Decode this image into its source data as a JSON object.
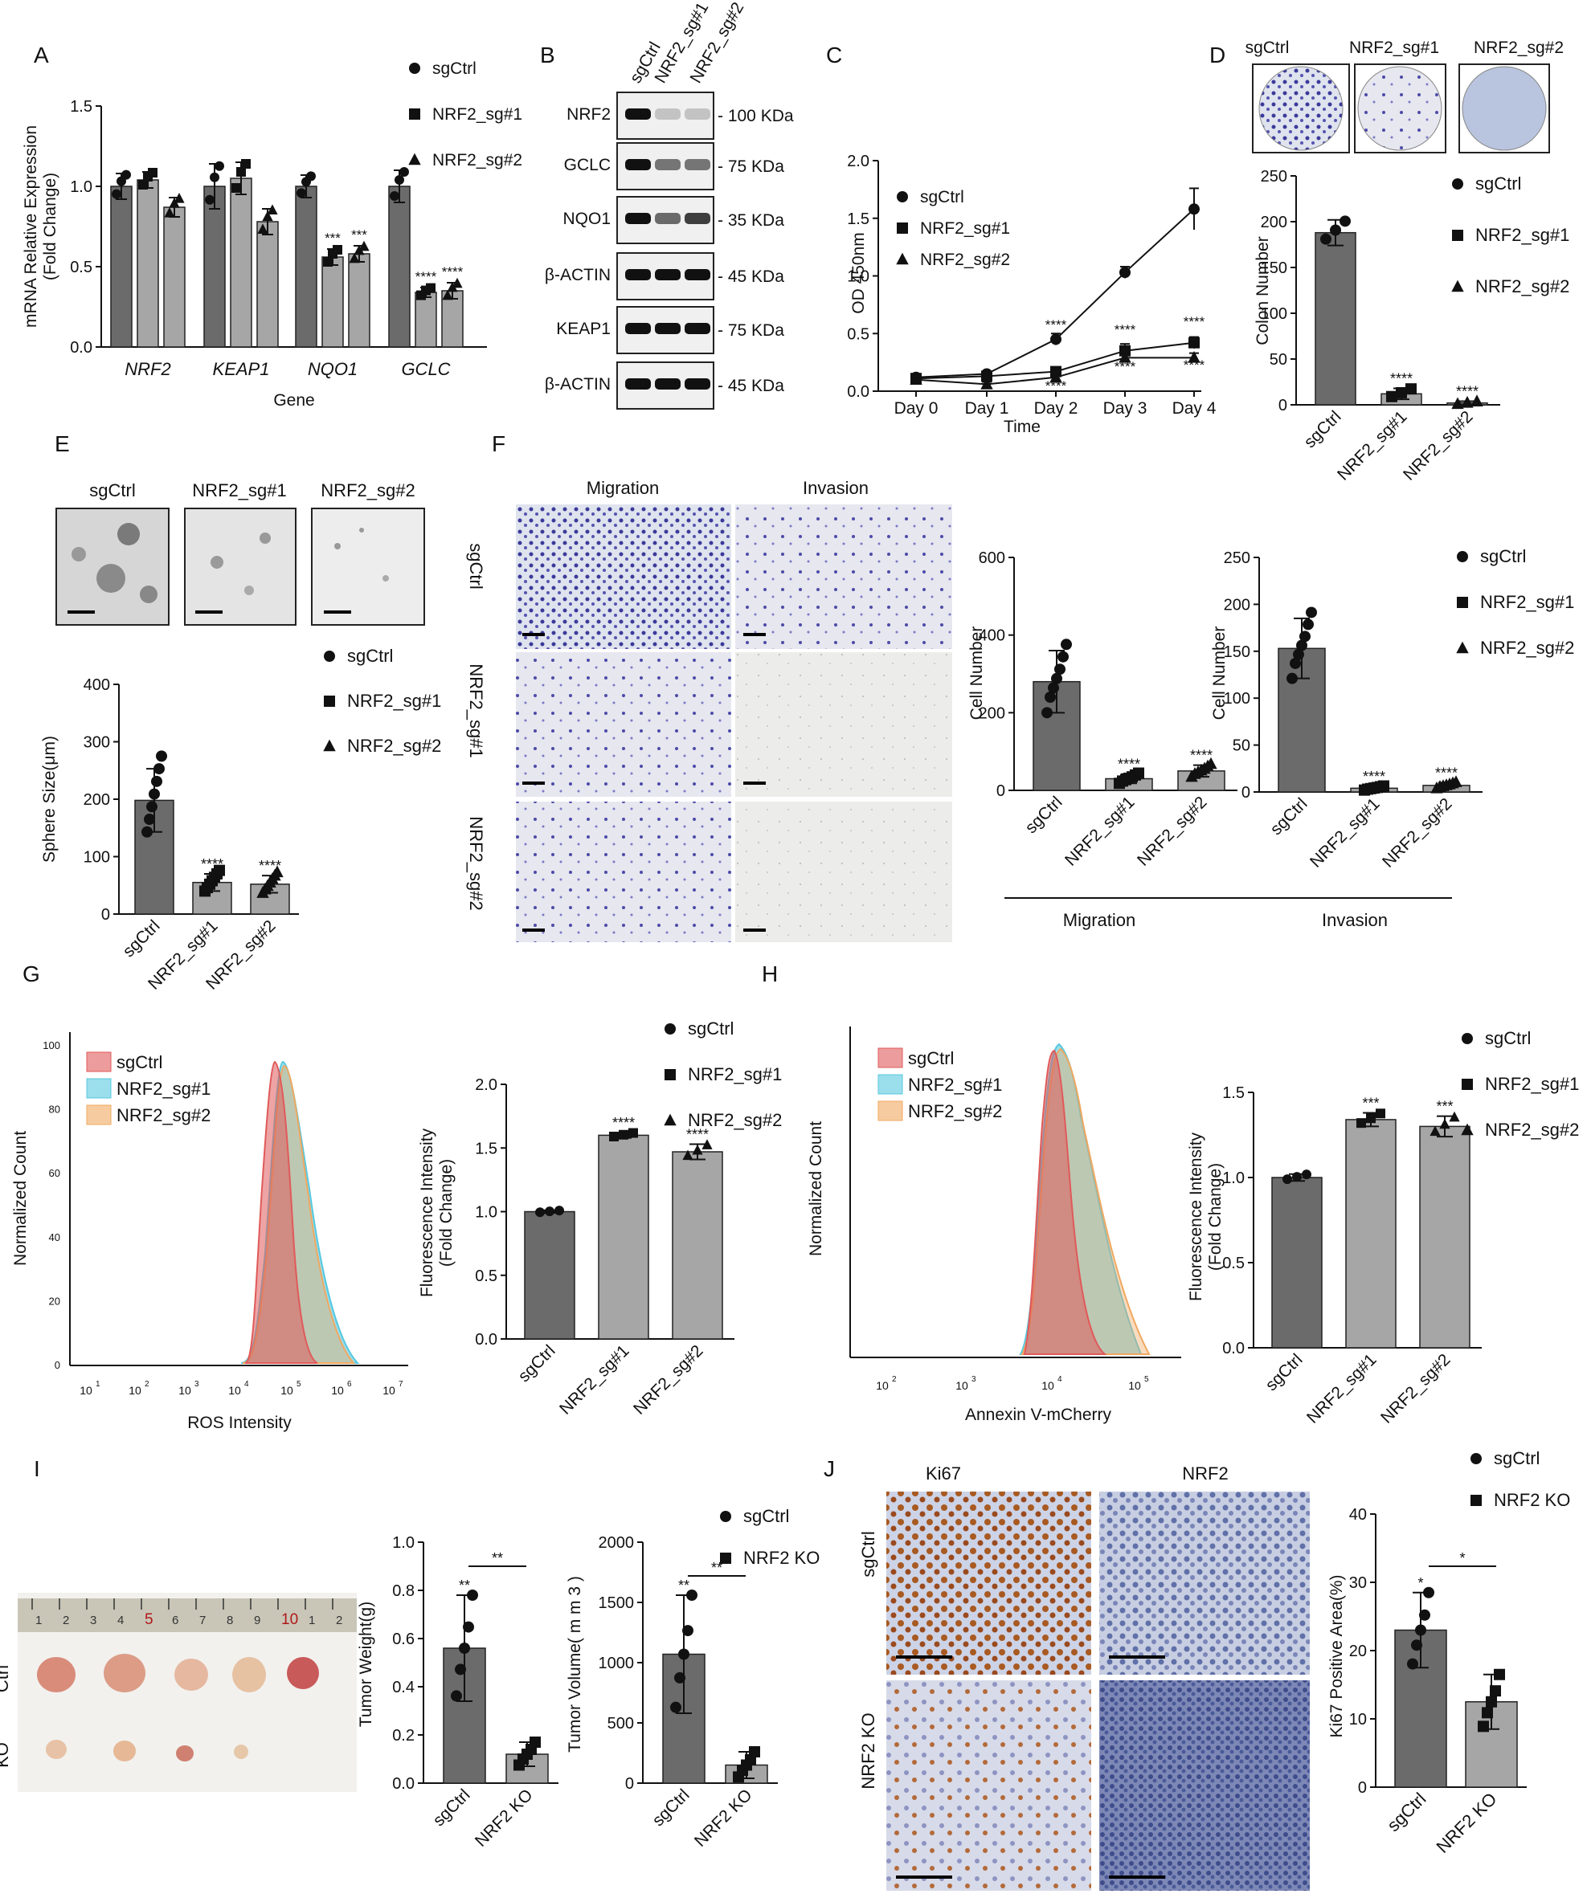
{
  "panel_letters": {
    "a": "A",
    "b": "B",
    "c": "C",
    "d": "D",
    "e": "E",
    "f": "F",
    "g": "G",
    "h": "H",
    "i": "I",
    "j": "J"
  },
  "groups": {
    "ctrl": "sgCtrl",
    "sg1": "NRF2_sg#1",
    "sg2": "NRF2_sg#2",
    "ko": "NRF2 KO"
  },
  "colors": {
    "ctrl_bar": "#6b6b6b",
    "treat_bar": "#a6a6a6",
    "hist_red": "#e05a5a",
    "hist_blue": "#58c8df",
    "hist_orange": "#f0a860",
    "stain_purple": "#3b3a9a",
    "ihc_brown": "#9a4a1e",
    "ihc_blue": "#4a5a9a"
  },
  "chart_data": [
    {
      "id": "A",
      "type": "bar",
      "title": "",
      "xlabel": "Gene",
      "ylabel": "mRNA Relative Expression (Fold Change)",
      "ylim": [
        0,
        1.5
      ],
      "yticks": [
        "0.0",
        "0.5",
        "1.0",
        "1.5"
      ],
      "categories": [
        "NRF2",
        "KEAP1",
        "NQO1",
        "GCLC"
      ],
      "series": [
        {
          "name": "sgCtrl",
          "values": [
            1.0,
            1.0,
            1.0,
            1.0
          ]
        },
        {
          "name": "NRF2_sg#1",
          "values": [
            1.04,
            1.05,
            0.56,
            0.34
          ]
        },
        {
          "name": "NRF2_sg#2",
          "values": [
            0.87,
            0.78,
            0.58,
            0.35
          ]
        }
      ],
      "errors": [
        [
          0.08,
          0.05,
          0.06
        ],
        [
          0.14,
          0.1,
          0.08
        ],
        [
          0.07,
          0.05,
          0.05
        ],
        [
          0.1,
          0.03,
          0.05
        ]
      ],
      "annotations": [
        {
          "cat": "NQO1",
          "series": 1,
          "text": "***"
        },
        {
          "cat": "NQO1",
          "series": 2,
          "text": "***"
        },
        {
          "cat": "GCLC",
          "series": 1,
          "text": "****"
        },
        {
          "cat": "GCLC",
          "series": 2,
          "text": "****"
        }
      ],
      "legend": [
        "sgCtrl",
        "NRF2_sg#1",
        "NRF2_sg#2"
      ]
    },
    {
      "id": "C",
      "type": "line",
      "xlabel": "Time",
      "ylabel": "OD 450nm",
      "ylim": [
        0,
        2.0
      ],
      "yticks": [
        "0.0",
        "0.5",
        "1.0",
        "1.5",
        "2.0"
      ],
      "x": [
        "Day 0",
        "Day 1",
        "Day 2",
        "Day 3",
        "Day 4"
      ],
      "series": [
        {
          "name": "sgCtrl",
          "values": [
            0.12,
            0.15,
            0.45,
            1.03,
            1.58
          ],
          "err": [
            0.02,
            0.02,
            0.05,
            0.05,
            0.18
          ]
        },
        {
          "name": "NRF2_sg#1",
          "values": [
            0.11,
            0.13,
            0.17,
            0.35,
            0.42
          ],
          "err": [
            0.02,
            0.02,
            0.03,
            0.06,
            0.05
          ]
        },
        {
          "name": "NRF2_sg#2",
          "values": [
            0.1,
            0.06,
            0.12,
            0.29,
            0.29
          ],
          "err": [
            0.02,
            0.02,
            0.02,
            0.04,
            0.04
          ]
        }
      ],
      "annotations": [
        "****",
        "****",
        "****",
        "****",
        "****",
        "****"
      ],
      "legend": [
        "sgCtrl",
        "NRF2_sg#1",
        "NRF2_sg#2"
      ]
    },
    {
      "id": "D",
      "type": "bar",
      "ylabel": "Colon Number",
      "ylim": [
        0,
        250
      ],
      "yticks": [
        "0",
        "50",
        "100",
        "150",
        "200",
        "250"
      ],
      "categories": [
        "sgCtrl",
        "NRF2_sg#1",
        "NRF2_sg#2"
      ],
      "values": [
        188,
        12,
        2
      ],
      "err": [
        14,
        6,
        2
      ],
      "annotations": [
        "",
        "****",
        "****"
      ],
      "legend": [
        "sgCtrl",
        "NRF2_sg#1",
        "NRF2_sg#2"
      ]
    },
    {
      "id": "E",
      "type": "bar",
      "ylabel": "Sphere Size(μm)",
      "ylim": [
        0,
        400
      ],
      "yticks": [
        "0",
        "100",
        "200",
        "300",
        "400"
      ],
      "categories": [
        "sgCtrl",
        "NRF2_sg#1",
        "NRF2_sg#2"
      ],
      "values": [
        198,
        55,
        52
      ],
      "err": [
        55,
        15,
        15
      ],
      "annotations": [
        "",
        "****",
        "****"
      ],
      "legend": [
        "sgCtrl",
        "NRF2_sg#1",
        "NRF2_sg#2"
      ]
    },
    {
      "id": "F-migration",
      "type": "bar",
      "ylabel": "Cell Number",
      "ylim": [
        0,
        600
      ],
      "yticks": [
        "0",
        "200",
        "400",
        "600"
      ],
      "categories": [
        "sgCtrl",
        "NRF2_sg#1",
        "NRF2_sg#2"
      ],
      "values": [
        280,
        30,
        50
      ],
      "err": [
        80,
        12,
        15
      ],
      "annotations": [
        "",
        "****",
        "****"
      ],
      "group_label": "Migration"
    },
    {
      "id": "F-invasion",
      "type": "bar",
      "ylabel": "Cell Number",
      "ylim": [
        0,
        250
      ],
      "yticks": [
        "0",
        "50",
        "100",
        "150",
        "200",
        "250"
      ],
      "categories": [
        "sgCtrl",
        "NRF2_sg#1",
        "NRF2_sg#2"
      ],
      "values": [
        153,
        4,
        7
      ],
      "err": [
        32,
        2,
        3
      ],
      "annotations": [
        "",
        "****",
        "****"
      ],
      "group_label": "Invasion",
      "legend": [
        "sgCtrl",
        "NRF2_sg#1",
        "NRF2_sg#2"
      ]
    },
    {
      "id": "G-hist",
      "type": "area",
      "xlabel": "ROS Intensity",
      "ylabel": "Normalized Count",
      "yticks": [
        "0",
        "20",
        "40",
        "60",
        "80",
        "100"
      ],
      "xticks": [
        "10",
        "10",
        "10",
        "10",
        "10",
        "10",
        "10"
      ],
      "xtick_exp": [
        "1",
        "2",
        "3",
        "4",
        "5",
        "6",
        "7"
      ],
      "legend": [
        "sgCtrl",
        "NRF2_sg#1",
        "NRF2_sg#2"
      ]
    },
    {
      "id": "G-bar",
      "type": "bar",
      "ylabel": "Fluorescence Intensity (Fold Change)",
      "ylim": [
        0,
        2.0
      ],
      "yticks": [
        "0.0",
        "0.5",
        "1.0",
        "1.5",
        "2.0"
      ],
      "categories": [
        "sgCtrl",
        "NRF2_sg#1",
        "NRF2_sg#2"
      ],
      "values": [
        1.0,
        1.6,
        1.47
      ],
      "err": [
        0.01,
        0.02,
        0.06
      ],
      "annotations": [
        "",
        "****",
        "****"
      ],
      "legend": [
        "sgCtrl",
        "NRF2_sg#1",
        "NRF2_sg#2"
      ]
    },
    {
      "id": "H-hist",
      "type": "area",
      "xlabel": "Annexin V-mCherry",
      "ylabel": "Normalized Count",
      "xticks": [
        "10",
        "10",
        "10",
        "10"
      ],
      "xtick_exp": [
        "2",
        "3",
        "4",
        "5"
      ],
      "legend": [
        "sgCtrl",
        "NRF2_sg#1",
        "NRF2_sg#2"
      ]
    },
    {
      "id": "H-bar",
      "type": "bar",
      "ylabel": "Fluorescence Intensity (Fold Change)",
      "ylim": [
        0,
        1.5
      ],
      "yticks": [
        "0.0",
        "0.5",
        "1.0",
        "1.5"
      ],
      "categories": [
        "sgCtrl",
        "NRF2_sg#1",
        "NRF2_sg#2"
      ],
      "values": [
        1.0,
        1.34,
        1.3
      ],
      "err": [
        0.02,
        0.04,
        0.06
      ],
      "annotations": [
        "",
        "***",
        "***"
      ],
      "legend": [
        "sgCtrl",
        "NRF2_sg#1",
        "NRF2_sg#2"
      ]
    },
    {
      "id": "I-weight",
      "type": "bar",
      "ylabel": "Tumor Weight(g)",
      "ylim": [
        0,
        1.0
      ],
      "yticks": [
        "0.0",
        "0.2",
        "0.4",
        "0.6",
        "0.8",
        "1.0"
      ],
      "categories": [
        "sgCtrl",
        "NRF2 KO"
      ],
      "values": [
        0.56,
        0.12
      ],
      "err": [
        0.22,
        0.05
      ],
      "annotations": [
        "**"
      ]
    },
    {
      "id": "I-volume",
      "type": "bar",
      "ylabel": "Tumor Volume( m m 3 )",
      "ylim": [
        0,
        2000
      ],
      "yticks": [
        "0",
        "500",
        "1000",
        "1500",
        "2000"
      ],
      "categories": [
        "sgCtrl",
        "NRF2 KO"
      ],
      "values": [
        1070,
        150
      ],
      "err": [
        490,
        110
      ],
      "annotations": [
        "**"
      ],
      "legend": [
        "sgCtrl",
        "NRF2 KO"
      ]
    },
    {
      "id": "J-bar",
      "type": "bar",
      "ylabel": "Ki67 Positive Area(%)",
      "ylim": [
        0,
        40
      ],
      "yticks": [
        "0",
        "10",
        "20",
        "30",
        "40"
      ],
      "categories": [
        "sgCtrl",
        "NRF2 KO"
      ],
      "values": [
        23,
        12.5
      ],
      "err": [
        5.5,
        4
      ],
      "annotations": [
        "*"
      ],
      "legend": [
        "sgCtrl",
        "NRF2 KO"
      ]
    }
  ],
  "blot": {
    "rows": [
      {
        "name": "NRF2",
        "size": "100 KDa"
      },
      {
        "name": "GCLC",
        "size": "75 KDa"
      },
      {
        "name": "NQO1",
        "size": "35 KDa"
      },
      {
        "name": "β-ACTIN",
        "size": "45 KDa"
      },
      {
        "name": "KEAP1",
        "size": "75 KDa"
      },
      {
        "name": "β-ACTIN",
        "size": "45 KDa"
      }
    ],
    "lanes": [
      "sgCtrl",
      "NRF2_sg#1",
      "NRF2_sg#2"
    ]
  },
  "transwell": {
    "columns": [
      "Migration",
      "Invasion"
    ],
    "rows": [
      "sgCtrl",
      "NRF2_sg#1",
      "NRF2_sg#2"
    ],
    "groups": [
      "Migration",
      "Invasion"
    ]
  },
  "tumor": {
    "rows": [
      "Ctrl",
      "KO"
    ],
    "ruler": [
      "1",
      "2",
      "3",
      "4",
      "5",
      "6",
      "7",
      "8",
      "9",
      "10",
      "1",
      "2"
    ]
  },
  "ihc": {
    "columns": [
      "Ki67",
      "NRF2"
    ],
    "rows": [
      "sgCtrl",
      "NRF2 KO"
    ]
  }
}
